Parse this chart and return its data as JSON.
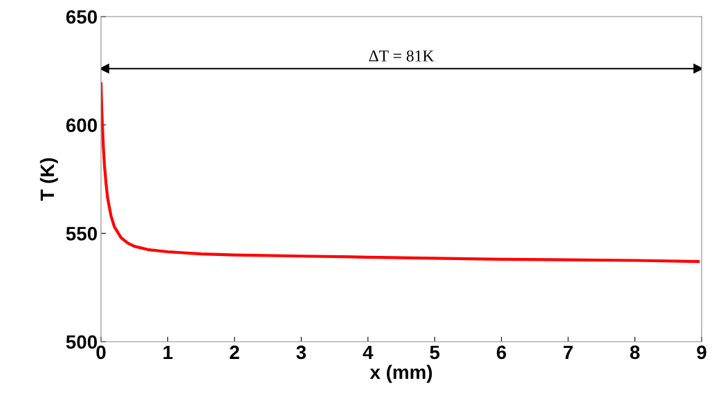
{
  "chart_data": {
    "type": "line",
    "xlabel": "x (mm)",
    "ylabel": "T (K)",
    "x": [
      0,
      0.01,
      0.02,
      0.035,
      0.05,
      0.075,
      0.1,
      0.15,
      0.2,
      0.3,
      0.4,
      0.5,
      0.7,
      1,
      1.5,
      2,
      3,
      4,
      5,
      6,
      7,
      8,
      8.95
    ],
    "series": [
      {
        "type": "line",
        "x": [
          0.05,
          8.95
        ],
        "values": [
          626,
          626
        ],
        "color": "#000000",
        "marker": "triangle"
      },
      {
        "color": "#ff0000",
        "values": [
          619,
          608,
          600,
          590,
          582,
          573,
          566,
          558,
          553,
          548,
          545.5,
          544,
          542.5,
          541.5,
          540.5,
          540,
          539.5,
          539,
          538.5,
          538,
          537.8,
          537.5,
          537
        ]
      }
    ],
    "xlim": [
      0,
      9
    ],
    "xticks": [
      0,
      1,
      2,
      3,
      4,
      5,
      6,
      7,
      8,
      9
    ],
    "ylim": [
      500,
      650
    ],
    "yticks": [
      500,
      550,
      600,
      650
    ],
    "grid": false,
    "marker": "none",
    "line_style": "solid",
    "annotations": [
      {
        "text": "ΔT = 81K",
        "x": 4.5,
        "y": 626
      }
    ]
  }
}
